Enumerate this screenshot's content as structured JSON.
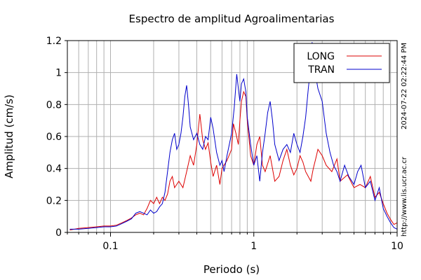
{
  "chart_data": {
    "type": "line",
    "title": "Espectro de amplitud Agroalimentarias",
    "xlabel": "Periodo (s)",
    "ylabel": "Amplitud (cm/s)",
    "x_scale": "log",
    "xlim": [
      0.05,
      10
    ],
    "ylim": [
      0,
      1.2
    ],
    "x_ticks": [
      "0.1",
      "1",
      "10"
    ],
    "y_ticks": [
      "0",
      "0.2",
      "0.4",
      "0.6",
      "0.8",
      "1",
      "1.2"
    ],
    "grid": true,
    "legend_position": "top-right",
    "series": [
      {
        "name": "LONG",
        "color": "#dd0000",
        "points": [
          [
            0.052,
            0.015
          ],
          [
            0.06,
            0.025
          ],
          [
            0.07,
            0.03
          ],
          [
            0.08,
            0.035
          ],
          [
            0.09,
            0.04
          ],
          [
            0.1,
            0.04
          ],
          [
            0.11,
            0.045
          ],
          [
            0.12,
            0.06
          ],
          [
            0.13,
            0.075
          ],
          [
            0.14,
            0.09
          ],
          [
            0.15,
            0.11
          ],
          [
            0.16,
            0.12
          ],
          [
            0.17,
            0.11
          ],
          [
            0.18,
            0.15
          ],
          [
            0.19,
            0.2
          ],
          [
            0.2,
            0.18
          ],
          [
            0.21,
            0.22
          ],
          [
            0.22,
            0.18
          ],
          [
            0.23,
            0.22
          ],
          [
            0.24,
            0.2
          ],
          [
            0.25,
            0.24
          ],
          [
            0.26,
            0.32
          ],
          [
            0.27,
            0.35
          ],
          [
            0.28,
            0.28
          ],
          [
            0.3,
            0.32
          ],
          [
            0.32,
            0.28
          ],
          [
            0.34,
            0.38
          ],
          [
            0.36,
            0.48
          ],
          [
            0.38,
            0.42
          ],
          [
            0.4,
            0.55
          ],
          [
            0.42,
            0.74
          ],
          [
            0.44,
            0.58
          ],
          [
            0.46,
            0.52
          ],
          [
            0.48,
            0.56
          ],
          [
            0.5,
            0.44
          ],
          [
            0.52,
            0.35
          ],
          [
            0.55,
            0.42
          ],
          [
            0.58,
            0.3
          ],
          [
            0.6,
            0.4
          ],
          [
            0.65,
            0.45
          ],
          [
            0.7,
            0.52
          ],
          [
            0.72,
            0.68
          ],
          [
            0.75,
            0.62
          ],
          [
            0.78,
            0.55
          ],
          [
            0.8,
            0.7
          ],
          [
            0.82,
            0.82
          ],
          [
            0.85,
            0.88
          ],
          [
            0.88,
            0.85
          ],
          [
            0.9,
            0.7
          ],
          [
            0.95,
            0.48
          ],
          [
            1.0,
            0.42
          ],
          [
            1.05,
            0.55
          ],
          [
            1.1,
            0.6
          ],
          [
            1.15,
            0.42
          ],
          [
            1.2,
            0.38
          ],
          [
            1.3,
            0.48
          ],
          [
            1.4,
            0.32
          ],
          [
            1.5,
            0.35
          ],
          [
            1.6,
            0.45
          ],
          [
            1.7,
            0.52
          ],
          [
            1.8,
            0.42
          ],
          [
            1.9,
            0.36
          ],
          [
            2.0,
            0.4
          ],
          [
            2.1,
            0.48
          ],
          [
            2.2,
            0.44
          ],
          [
            2.3,
            0.38
          ],
          [
            2.5,
            0.32
          ],
          [
            2.6,
            0.4
          ],
          [
            2.7,
            0.46
          ],
          [
            2.8,
            0.52
          ],
          [
            3.0,
            0.48
          ],
          [
            3.2,
            0.42
          ],
          [
            3.5,
            0.38
          ],
          [
            3.8,
            0.46
          ],
          [
            4.0,
            0.32
          ],
          [
            4.5,
            0.36
          ],
          [
            5.0,
            0.28
          ],
          [
            5.5,
            0.3
          ],
          [
            6.0,
            0.28
          ],
          [
            6.5,
            0.35
          ],
          [
            7.0,
            0.22
          ],
          [
            7.5,
            0.25
          ],
          [
            8.0,
            0.18
          ],
          [
            8.5,
            0.12
          ],
          [
            9.0,
            0.08
          ],
          [
            9.5,
            0.05
          ],
          [
            10.0,
            0.06
          ]
        ]
      },
      {
        "name": "TRAN",
        "color": "#0000cc",
        "points": [
          [
            0.052,
            0.02
          ],
          [
            0.06,
            0.02
          ],
          [
            0.07,
            0.025
          ],
          [
            0.08,
            0.03
          ],
          [
            0.09,
            0.035
          ],
          [
            0.1,
            0.035
          ],
          [
            0.11,
            0.04
          ],
          [
            0.12,
            0.055
          ],
          [
            0.13,
            0.07
          ],
          [
            0.14,
            0.085
          ],
          [
            0.15,
            0.12
          ],
          [
            0.16,
            0.13
          ],
          [
            0.17,
            0.12
          ],
          [
            0.18,
            0.11
          ],
          [
            0.19,
            0.14
          ],
          [
            0.2,
            0.12
          ],
          [
            0.21,
            0.13
          ],
          [
            0.22,
            0.16
          ],
          [
            0.23,
            0.18
          ],
          [
            0.24,
            0.25
          ],
          [
            0.25,
            0.38
          ],
          [
            0.26,
            0.5
          ],
          [
            0.27,
            0.58
          ],
          [
            0.28,
            0.62
          ],
          [
            0.29,
            0.52
          ],
          [
            0.3,
            0.55
          ],
          [
            0.31,
            0.62
          ],
          [
            0.32,
            0.72
          ],
          [
            0.33,
            0.85
          ],
          [
            0.34,
            0.92
          ],
          [
            0.35,
            0.8
          ],
          [
            0.36,
            0.66
          ],
          [
            0.38,
            0.58
          ],
          [
            0.4,
            0.62
          ],
          [
            0.42,
            0.55
          ],
          [
            0.44,
            0.52
          ],
          [
            0.46,
            0.6
          ],
          [
            0.48,
            0.58
          ],
          [
            0.5,
            0.72
          ],
          [
            0.52,
            0.65
          ],
          [
            0.55,
            0.5
          ],
          [
            0.58,
            0.42
          ],
          [
            0.6,
            0.45
          ],
          [
            0.62,
            0.38
          ],
          [
            0.65,
            0.48
          ],
          [
            0.7,
            0.62
          ],
          [
            0.73,
            0.78
          ],
          [
            0.76,
            0.99
          ],
          [
            0.78,
            0.9
          ],
          [
            0.8,
            0.82
          ],
          [
            0.82,
            0.93
          ],
          [
            0.85,
            0.96
          ],
          [
            0.88,
            0.88
          ],
          [
            0.9,
            0.72
          ],
          [
            0.95,
            0.55
          ],
          [
            1.0,
            0.42
          ],
          [
            1.05,
            0.48
          ],
          [
            1.1,
            0.32
          ],
          [
            1.15,
            0.5
          ],
          [
            1.2,
            0.62
          ],
          [
            1.25,
            0.75
          ],
          [
            1.3,
            0.82
          ],
          [
            1.35,
            0.7
          ],
          [
            1.4,
            0.55
          ],
          [
            1.5,
            0.45
          ],
          [
            1.6,
            0.52
          ],
          [
            1.7,
            0.55
          ],
          [
            1.8,
            0.5
          ],
          [
            1.9,
            0.62
          ],
          [
            2.0,
            0.55
          ],
          [
            2.1,
            0.5
          ],
          [
            2.2,
            0.6
          ],
          [
            2.3,
            0.72
          ],
          [
            2.4,
            0.9
          ],
          [
            2.5,
            1.05
          ],
          [
            2.55,
            1.19
          ],
          [
            2.6,
            1.05
          ],
          [
            2.7,
            0.98
          ],
          [
            2.8,
            0.9
          ],
          [
            3.0,
            0.82
          ],
          [
            3.2,
            0.62
          ],
          [
            3.4,
            0.5
          ],
          [
            3.6,
            0.42
          ],
          [
            3.8,
            0.38
          ],
          [
            4.0,
            0.32
          ],
          [
            4.3,
            0.42
          ],
          [
            4.6,
            0.35
          ],
          [
            5.0,
            0.3
          ],
          [
            5.3,
            0.38
          ],
          [
            5.6,
            0.42
          ],
          [
            6.0,
            0.28
          ],
          [
            6.5,
            0.32
          ],
          [
            7.0,
            0.2
          ],
          [
            7.5,
            0.28
          ],
          [
            8.0,
            0.15
          ],
          [
            8.5,
            0.1
          ],
          [
            9.0,
            0.06
          ],
          [
            9.5,
            0.03
          ],
          [
            10.0,
            0.02
          ]
        ]
      }
    ],
    "annotations": [
      "2024-07-22 02:22:44 PM",
      "http://www.lis.ucr.ac.cr"
    ]
  }
}
